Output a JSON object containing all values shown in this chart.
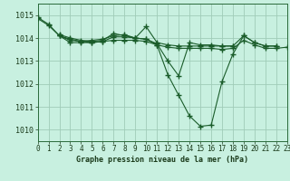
{
  "title": "Graphe pression niveau de la mer (hPa)",
  "bg_color": "#c8f0e0",
  "grid_color": "#a0ccb8",
  "line_color": "#1a5c2a",
  "xlim": [
    0,
    23
  ],
  "ylim": [
    1009.5,
    1015.5
  ],
  "yticks": [
    1010,
    1011,
    1012,
    1013,
    1014,
    1015
  ],
  "xticks": [
    0,
    1,
    2,
    3,
    4,
    5,
    6,
    7,
    8,
    9,
    10,
    11,
    12,
    13,
    14,
    15,
    16,
    17,
    18,
    19,
    20,
    21,
    22,
    23
  ],
  "series": [
    {
      "x": [
        0,
        1,
        2,
        3,
        4,
        5,
        6,
        7,
        8,
        9,
        10,
        11,
        12,
        13,
        14,
        15,
        16,
        17,
        18,
        19,
        20,
        21,
        22
      ],
      "y": [
        1014.9,
        1014.6,
        1014.1,
        1013.8,
        1013.8,
        1013.8,
        1013.85,
        1013.9,
        1013.9,
        1013.9,
        1013.85,
        1013.7,
        1012.4,
        1011.5,
        1010.6,
        1010.15,
        1010.2,
        1012.1,
        1013.3,
        1014.1,
        1013.8,
        1013.65,
        1013.65
      ]
    },
    {
      "x": [
        0,
        1,
        2,
        3,
        4,
        5,
        6,
        7,
        8,
        9,
        10,
        11,
        12,
        13,
        14,
        15,
        16,
        17,
        18
      ],
      "y": [
        1014.85,
        1014.55,
        1014.1,
        1013.9,
        1013.85,
        1013.9,
        1013.95,
        1014.1,
        1014.15,
        1014.0,
        1013.95,
        1013.75,
        1013.0,
        1012.35,
        1013.8,
        1013.7,
        1013.7,
        1013.65,
        1013.65
      ]
    },
    {
      "x": [
        2,
        3,
        4,
        5,
        6,
        7,
        8,
        9,
        10,
        11,
        12,
        13,
        14,
        15,
        16,
        17,
        18,
        19,
        20,
        21,
        22
      ],
      "y": [
        1014.15,
        1014.0,
        1013.9,
        1013.85,
        1013.9,
        1014.2,
        1014.1,
        1014.0,
        1014.5,
        1013.8,
        1013.7,
        1013.65,
        1013.65,
        1013.65,
        1013.65,
        1013.65,
        1013.65,
        1014.1,
        1013.8,
        1013.65,
        1013.65
      ]
    },
    {
      "x": [
        2,
        3,
        4,
        5,
        6,
        7,
        8,
        9,
        10,
        11,
        12,
        13,
        14,
        15,
        16,
        17,
        18,
        19,
        20,
        21,
        22,
        23
      ],
      "y": [
        1014.1,
        1013.95,
        1013.85,
        1013.8,
        1013.85,
        1014.05,
        1014.05,
        1014.0,
        1013.95,
        1013.7,
        1013.6,
        1013.55,
        1013.55,
        1013.55,
        1013.55,
        1013.5,
        1013.55,
        1013.9,
        1013.7,
        1013.55,
        1013.55,
        1013.6
      ]
    }
  ]
}
